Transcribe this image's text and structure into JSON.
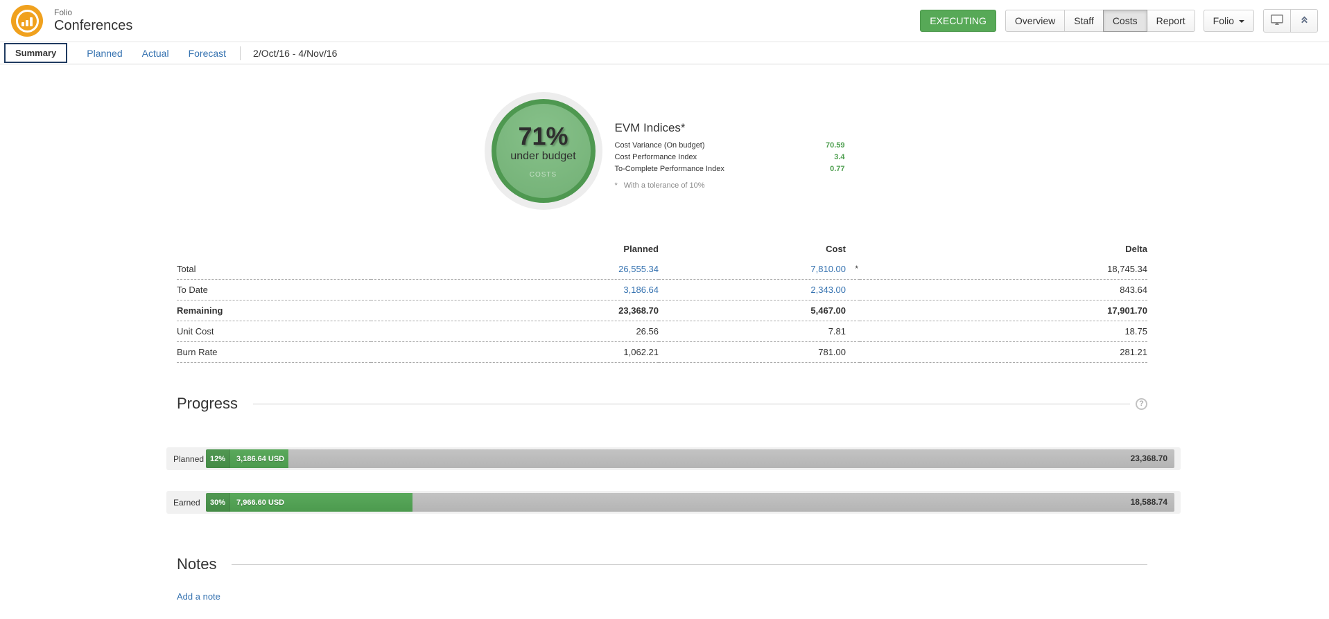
{
  "header": {
    "app_label": "Folio",
    "project_title": "Conferences",
    "status_badge": "EXECUTING",
    "nav": [
      {
        "label": "Overview",
        "active": false
      },
      {
        "label": "Staff",
        "active": false
      },
      {
        "label": "Costs",
        "active": true
      },
      {
        "label": "Report",
        "active": false
      }
    ],
    "folio_dropdown": "Folio",
    "icon_buttons": [
      "monitor-icon",
      "collapse-up-icon"
    ]
  },
  "subnav": {
    "tabs": [
      {
        "label": "Summary",
        "active": true
      },
      {
        "label": "Planned",
        "active": false
      },
      {
        "label": "Actual",
        "active": false
      },
      {
        "label": "Forecast",
        "active": false
      }
    ],
    "date_range": "2/Oct/16  -  4/Nov/16"
  },
  "gauge": {
    "percent": "71%",
    "label": "under budget",
    "caption": "COSTS"
  },
  "evm": {
    "title": "EVM Indices*",
    "rows": [
      {
        "label": "Cost Variance (On budget)",
        "value": "70.59"
      },
      {
        "label": "Cost Performance Index",
        "value": "3.4"
      },
      {
        "label": "To-Complete Performance Index",
        "value": "0.77"
      }
    ],
    "footnote_star": "*",
    "footnote": "With a tolerance of 10%"
  },
  "costs_table": {
    "columns": [
      "Planned",
      "Cost",
      "Delta"
    ],
    "rows": [
      {
        "label": "Total",
        "planned": "26,555.34",
        "cost": "7,810.00",
        "cost_note": "*",
        "delta": "18,745.34"
      },
      {
        "label": "To Date",
        "planned": "3,186.64",
        "cost": "2,343.00",
        "delta": "843.64"
      },
      {
        "label": "Remaining",
        "planned": "23,368.70",
        "cost": "5,467.00",
        "delta": "17,901.70"
      },
      {
        "label": "Unit Cost",
        "planned": "26.56",
        "cost": "7.81",
        "delta": "18.75"
      },
      {
        "label": "Burn Rate",
        "planned": "1,062.21",
        "cost": "781.00",
        "delta": "281.21"
      }
    ]
  },
  "progress": {
    "title": "Progress",
    "help_icon": "?",
    "bars": [
      {
        "label": "Planned",
        "percent": "12%",
        "value": "3,186.64 USD",
        "remaining": "23,368.70",
        "fill_fraction": 0.085
      },
      {
        "label": "Earned",
        "percent": "30%",
        "value": "7,966.60 USD",
        "remaining": "18,588.74",
        "fill_fraction": 0.213
      }
    ]
  },
  "notes": {
    "title": "Notes",
    "add_note_label": "Add a note"
  },
  "colors": {
    "accent_green": "#57a957",
    "bar_green": "#52a355",
    "gauge_fill": "#7db980",
    "gauge_ring": "#4e9850",
    "link_blue": "#3572b0",
    "summary_tab_border": "#203b60",
    "logo_orange": "#f0a11e"
  }
}
